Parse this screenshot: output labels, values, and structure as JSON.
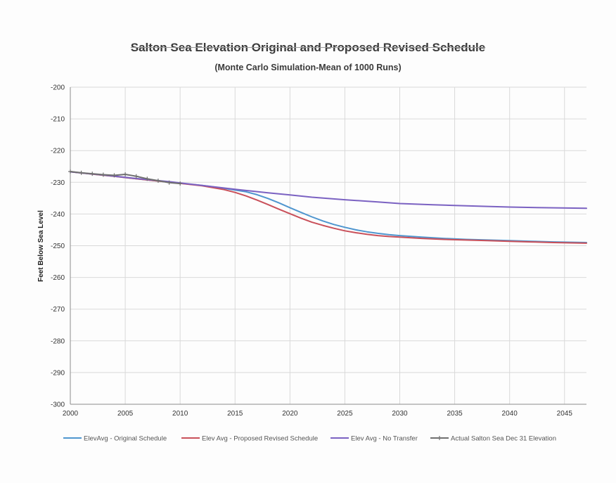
{
  "chart_data": {
    "type": "line",
    "title": "Salton Sea Elevation Original and Proposed Revised Schedule",
    "subtitle": "(Monte Carlo Simulation-Mean of 1000 Runs)",
    "xlabel": "",
    "ylabel": "Feet Below Sea Level",
    "xlim": [
      2000,
      2047
    ],
    "ylim": [
      -300,
      -200
    ],
    "x_ticks": [
      2000,
      2005,
      2010,
      2015,
      2020,
      2025,
      2030,
      2035,
      2040,
      2045
    ],
    "y_ticks": [
      -200,
      -210,
      -220,
      -230,
      -240,
      -250,
      -260,
      -270,
      -280,
      -290,
      -300
    ],
    "grid": true,
    "legend_position": "bottom",
    "series": [
      {
        "name": "ElevAvg - Original Schedule",
        "color": "#4f96cf",
        "x": [
          2000,
          2002,
          2004,
          2006,
          2008,
          2010,
          2012,
          2014,
          2016,
          2017,
          2018,
          2019,
          2020,
          2021,
          2022,
          2023,
          2024,
          2025,
          2026,
          2027,
          2028,
          2029,
          2030,
          2032,
          2034,
          2036,
          2038,
          2040,
          2042,
          2044,
          2047
        ],
        "y": [
          -226.7,
          -227.4,
          -228.1,
          -228.9,
          -229.6,
          -230.3,
          -231.0,
          -231.9,
          -233.0,
          -233.9,
          -235.1,
          -236.5,
          -238.0,
          -239.5,
          -240.9,
          -242.2,
          -243.3,
          -244.2,
          -245.0,
          -245.6,
          -246.1,
          -246.5,
          -246.8,
          -247.3,
          -247.7,
          -248.0,
          -248.2,
          -248.4,
          -248.6,
          -248.8,
          -249.0
        ]
      },
      {
        "name": "Elev Avg - Proposed Revised Schedule",
        "color": "#c9505a",
        "x": [
          2000,
          2002,
          2004,
          2006,
          2008,
          2010,
          2012,
          2014,
          2015,
          2016,
          2017,
          2018,
          2019,
          2020,
          2021,
          2022,
          2023,
          2024,
          2025,
          2026,
          2027,
          2028,
          2029,
          2030,
          2032,
          2034,
          2036,
          2038,
          2040,
          2042,
          2044,
          2047
        ],
        "y": [
          -226.7,
          -227.4,
          -228.1,
          -228.9,
          -229.6,
          -230.3,
          -231.1,
          -232.3,
          -233.2,
          -234.3,
          -235.6,
          -237.0,
          -238.5,
          -239.9,
          -241.3,
          -242.6,
          -243.6,
          -244.5,
          -245.3,
          -245.9,
          -246.4,
          -246.8,
          -247.1,
          -247.3,
          -247.7,
          -248.0,
          -248.2,
          -248.4,
          -248.6,
          -248.8,
          -249.0,
          -249.2
        ]
      },
      {
        "name": "Elev Avg - No Transfer",
        "color": "#7b62c2",
        "x": [
          2000,
          2003,
          2006,
          2009,
          2010,
          2012,
          2015,
          2018,
          2020,
          2022,
          2025,
          2028,
          2030,
          2033,
          2035,
          2038,
          2040,
          2043,
          2047
        ],
        "y": [
          -226.7,
          -227.7,
          -228.8,
          -229.8,
          -230.2,
          -231.0,
          -232.2,
          -233.3,
          -234.0,
          -234.7,
          -235.5,
          -236.2,
          -236.7,
          -237.1,
          -237.3,
          -237.6,
          -237.8,
          -238.0,
          -238.2
        ]
      },
      {
        "name": "Actual Salton Sea Dec 31 Elevation",
        "color": "#6f6f6f",
        "x": [
          2000,
          2001,
          2002,
          2003,
          2004,
          2005,
          2006,
          2007,
          2008,
          2009,
          2010
        ],
        "y": [
          -226.6,
          -227.0,
          -227.3,
          -227.6,
          -227.8,
          -227.5,
          -228.1,
          -228.9,
          -229.5,
          -230.1,
          -230.4
        ]
      }
    ]
  }
}
